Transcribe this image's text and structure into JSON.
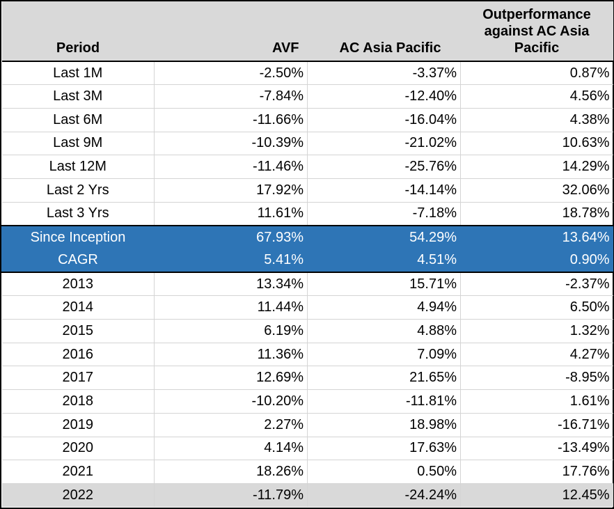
{
  "headers": {
    "period": "Period",
    "avf": "AVF",
    "ac": "AC Asia Pacific",
    "out_line1": "Outperformance",
    "out_line2": "against AC Asia",
    "out_line3": "Pacific"
  },
  "rows": [
    {
      "period": "Last 1M",
      "avf": "-2.50%",
      "ac": "-3.37%",
      "out": "0.87%"
    },
    {
      "period": "Last 3M",
      "avf": "-7.84%",
      "ac": "-12.40%",
      "out": "4.56%"
    },
    {
      "period": "Last 6M",
      "avf": "-11.66%",
      "ac": "-16.04%",
      "out": "4.38%"
    },
    {
      "period": "Last 9M",
      "avf": "-10.39%",
      "ac": "-21.02%",
      "out": "10.63%"
    },
    {
      "period": "Last 12M",
      "avf": "-11.46%",
      "ac": "-25.76%",
      "out": "14.29%"
    },
    {
      "period": "Last 2 Yrs",
      "avf": "17.92%",
      "ac": "-14.14%",
      "out": "32.06%"
    },
    {
      "period": "Last 3 Yrs",
      "avf": "11.61%",
      "ac": "-7.18%",
      "out": "18.78%"
    },
    {
      "period": "Since Inception",
      "avf": "67.93%",
      "ac": "54.29%",
      "out": "13.64%"
    },
    {
      "period": "CAGR",
      "avf": "5.41%",
      "ac": "4.51%",
      "out": "0.90%"
    },
    {
      "period": "2013",
      "avf": "13.34%",
      "ac": "15.71%",
      "out": "-2.37%"
    },
    {
      "period": "2014",
      "avf": "11.44%",
      "ac": "4.94%",
      "out": "6.50%"
    },
    {
      "period": "2015",
      "avf": "6.19%",
      "ac": "4.88%",
      "out": "1.32%"
    },
    {
      "period": "2016",
      "avf": "11.36%",
      "ac": "7.09%",
      "out": "4.27%"
    },
    {
      "period": "2017",
      "avf": "12.69%",
      "ac": "21.65%",
      "out": "-8.95%"
    },
    {
      "period": "2018",
      "avf": "-10.20%",
      "ac": "-11.81%",
      "out": "1.61%"
    },
    {
      "period": "2019",
      "avf": "2.27%",
      "ac": "18.98%",
      "out": "-16.71%"
    },
    {
      "period": "2020",
      "avf": "4.14%",
      "ac": "17.63%",
      "out": "-13.49%"
    },
    {
      "period": "2021",
      "avf": "18.26%",
      "ac": "0.50%",
      "out": "17.76%"
    },
    {
      "period": "2022",
      "avf": "-11.79%",
      "ac": "-24.24%",
      "out": "12.45%"
    }
  ],
  "colors": {
    "highlight_row": "#2e75b6",
    "header_bg": "#d9d9d9",
    "last_row_bg": "#d9d9d9"
  }
}
